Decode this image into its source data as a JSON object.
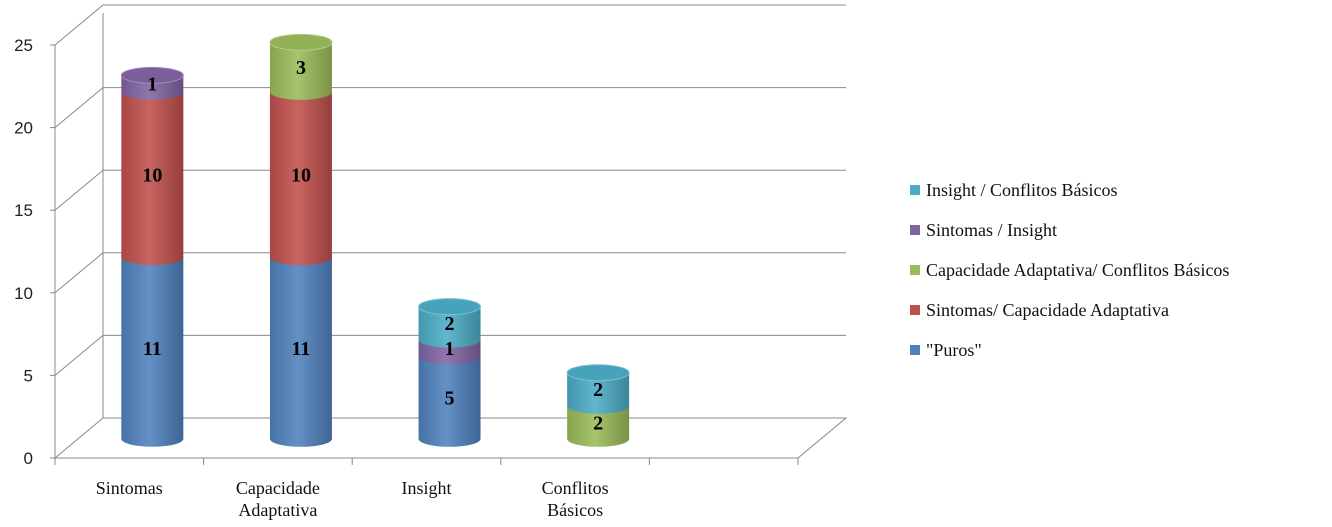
{
  "chart_data": {
    "type": "bar",
    "style": "3d-stacked-cylinder",
    "title": "",
    "xlabel": "",
    "ylabel": "",
    "ylim": [
      0,
      25
    ],
    "yticks": [
      "0",
      "5",
      "10",
      "15",
      "20",
      "25"
    ],
    "categories": [
      [
        "Sintomas"
      ],
      [
        "Capacidade",
        "Adaptativa"
      ],
      [
        "Insight"
      ],
      [
        "Conflitos",
        "Básicos"
      ]
    ],
    "grid": true,
    "legend_position": "right",
    "series": [
      {
        "name": "\"Puros\"",
        "color": "#4f81bd",
        "values": [
          11,
          11,
          5,
          0
        ]
      },
      {
        "name": "Sintomas/ Capacidade Adaptativa",
        "color": "#c0504d",
        "values": [
          10,
          10,
          0,
          0
        ]
      },
      {
        "name": "Capacidade Adaptativa/ Conflitos Básicos",
        "color": "#9bbb59",
        "values": [
          0,
          3,
          0,
          2
        ]
      },
      {
        "name": "Sintomas / Insight",
        "color": "#8064a2",
        "values": [
          1,
          0,
          1,
          0
        ]
      },
      {
        "name": "Insight / Conflitos Básicos",
        "color": "#4bacc6",
        "values": [
          0,
          0,
          2,
          2
        ]
      }
    ],
    "legend_order": [
      4,
      3,
      2,
      1,
      0
    ]
  }
}
